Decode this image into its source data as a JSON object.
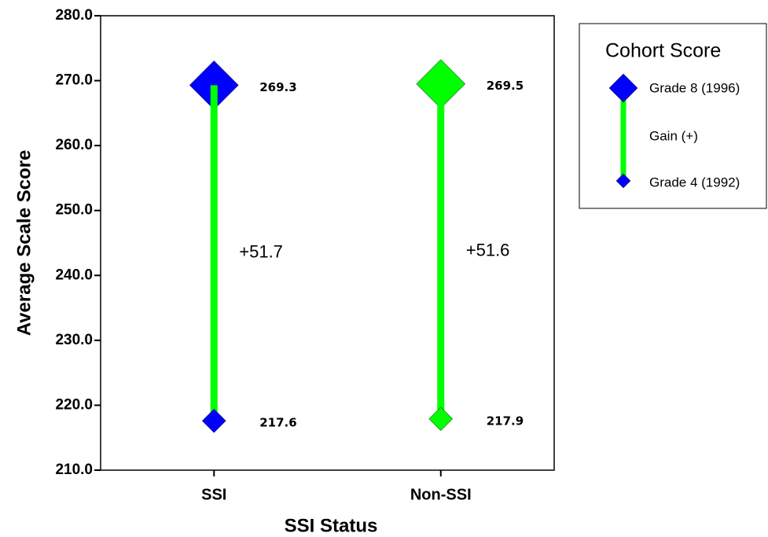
{
  "chart_data": {
    "type": "dumbbell",
    "x_label": "SSI Status",
    "y_label": "Average Scale Score",
    "categories": [
      "SSI",
      "Non-SSI"
    ],
    "ylim": [
      210,
      280
    ],
    "yticks": [
      {
        "value": 210,
        "label": "210.0"
      },
      {
        "value": 220,
        "label": "220.0"
      },
      {
        "value": 230,
        "label": "230.0"
      },
      {
        "value": 240,
        "label": "240.0"
      },
      {
        "value": 250,
        "label": "250.0"
      },
      {
        "value": 260,
        "label": "260.0"
      },
      {
        "value": 270,
        "label": "270.0"
      },
      {
        "value": 280,
        "label": "280.0"
      }
    ],
    "legend_title": "Cohort Score",
    "series": [
      {
        "name": "Grade 8 (1996)",
        "values": [
          269.3,
          269.5
        ],
        "colors": [
          "#0000ff",
          "#00ff00"
        ]
      },
      {
        "name": "Gain (+)",
        "values": [
          51.7,
          51.6
        ],
        "value_labels": [
          "+51.7",
          "+51.6"
        ],
        "color": "#00ff00"
      },
      {
        "name": "Grade 4 (1992)",
        "values": [
          217.6,
          217.9
        ],
        "colors": [
          "#0000ff",
          "#00ff00"
        ]
      }
    ]
  }
}
